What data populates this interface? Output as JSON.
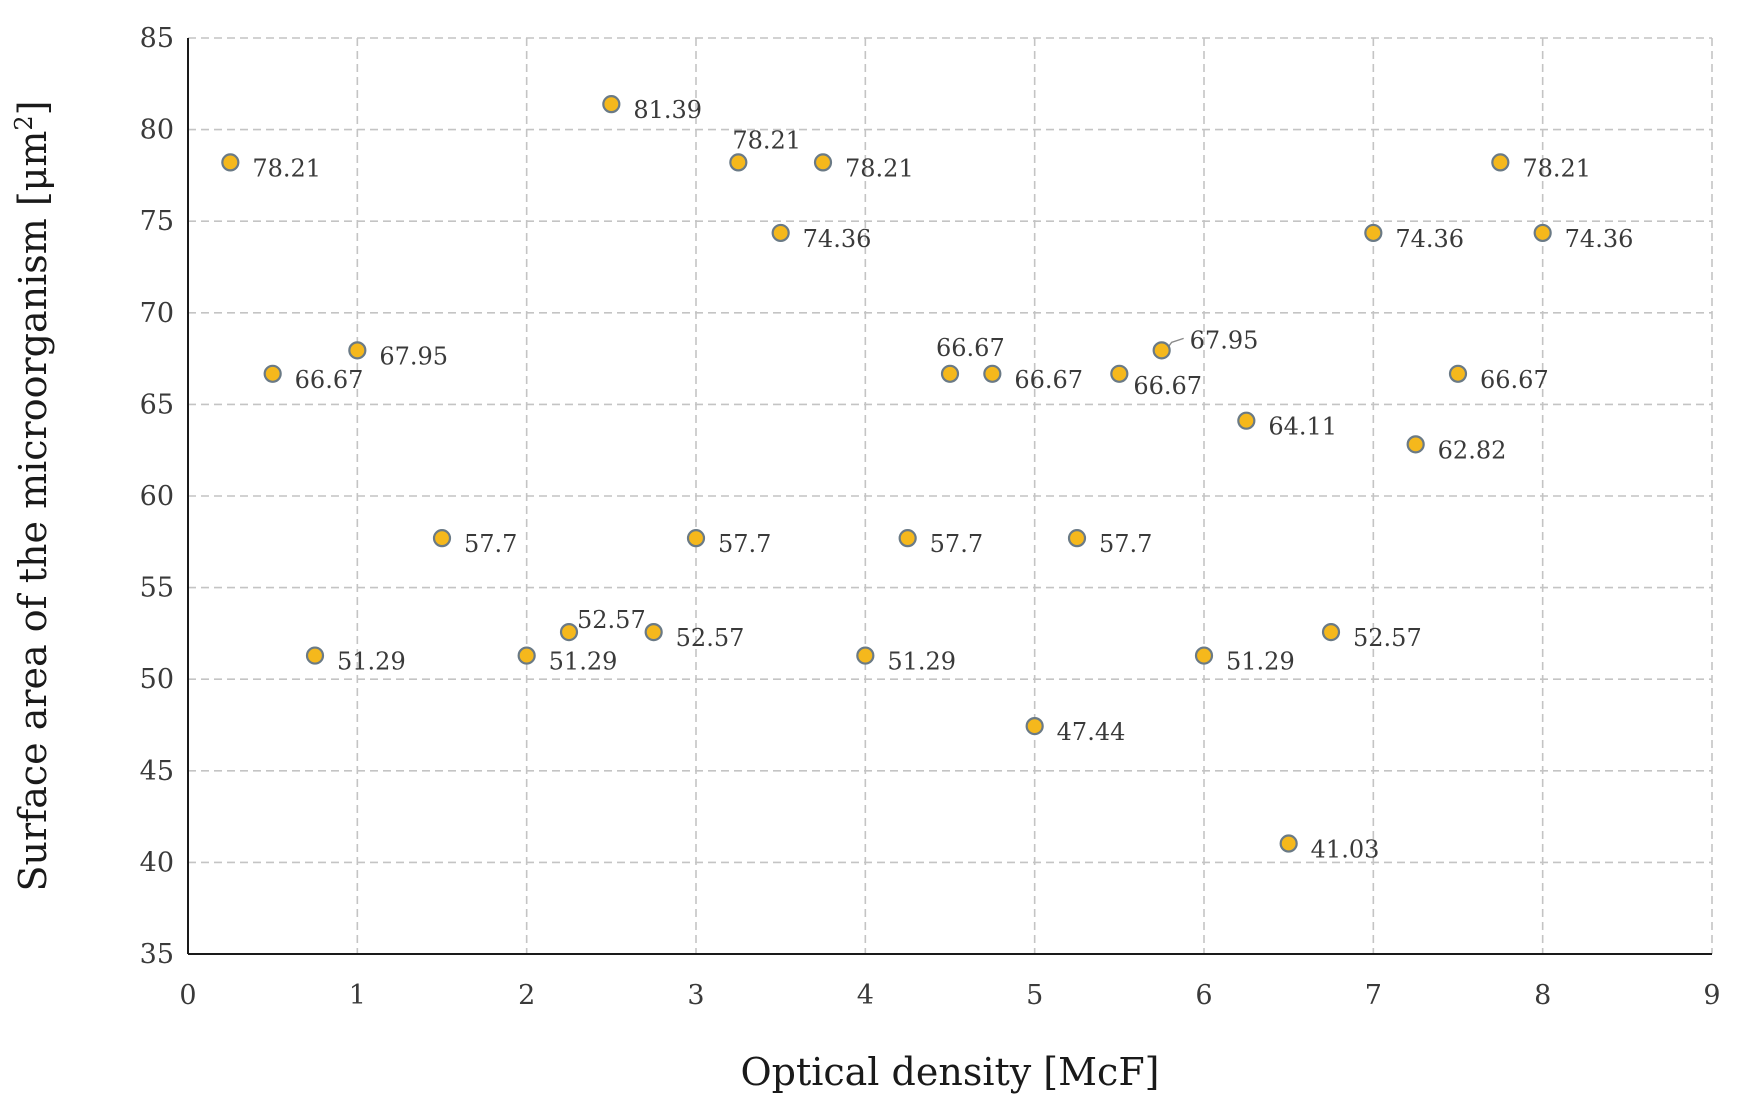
{
  "chart_data": {
    "type": "scatter",
    "title": "",
    "xlabel": "Optical density [McF]",
    "ylabel_main": "Surface area of the microorganism [μm",
    "ylabel_sup": "2",
    "ylabel_tail": "]",
    "xlim": [
      0,
      9
    ],
    "ylim": [
      35,
      85
    ],
    "x_ticks": [
      0,
      1,
      2,
      3,
      4,
      5,
      6,
      7,
      8,
      9
    ],
    "y_ticks": [
      35,
      40,
      45,
      50,
      55,
      60,
      65,
      70,
      75,
      80,
      85
    ],
    "grid": true,
    "legend": "none",
    "colors": {
      "marker_fill": "#F5B81C",
      "marker_edge": "#6A7A86"
    },
    "points": [
      {
        "x": 0.25,
        "y": 78.21,
        "label": "78.21"
      },
      {
        "x": 0.5,
        "y": 66.67,
        "label": "66.67"
      },
      {
        "x": 0.75,
        "y": 51.29,
        "label": "51.29"
      },
      {
        "x": 1.0,
        "y": 67.95,
        "label": "67.95"
      },
      {
        "x": 1.5,
        "y": 57.7,
        "label": "57.7"
      },
      {
        "x": 2.0,
        "y": 51.29,
        "label": "51.29"
      },
      {
        "x": 2.25,
        "y": 52.57,
        "label": "52.57"
      },
      {
        "x": 2.5,
        "y": 81.39,
        "label": "81.39"
      },
      {
        "x": 2.75,
        "y": 52.57,
        "label": "52.57"
      },
      {
        "x": 3.0,
        "y": 57.7,
        "label": "57.7"
      },
      {
        "x": 3.25,
        "y": 78.21,
        "label": "78.21"
      },
      {
        "x": 3.5,
        "y": 74.36,
        "label": "74.36"
      },
      {
        "x": 3.75,
        "y": 78.21,
        "label": "78.21"
      },
      {
        "x": 4.0,
        "y": 51.29,
        "label": "51.29"
      },
      {
        "x": 4.25,
        "y": 57.7,
        "label": "57.7"
      },
      {
        "x": 4.5,
        "y": 66.67,
        "label": "66.67"
      },
      {
        "x": 4.75,
        "y": 66.67,
        "label": "66.67"
      },
      {
        "x": 5.0,
        "y": 47.44,
        "label": "47.44"
      },
      {
        "x": 5.25,
        "y": 57.7,
        "label": "57.7"
      },
      {
        "x": 5.5,
        "y": 66.67,
        "label": "66.67"
      },
      {
        "x": 5.75,
        "y": 67.95,
        "label": "67.95"
      },
      {
        "x": 6.0,
        "y": 51.29,
        "label": "51.29"
      },
      {
        "x": 6.25,
        "y": 64.11,
        "label": "64.11"
      },
      {
        "x": 6.5,
        "y": 41.03,
        "label": "41.03"
      },
      {
        "x": 6.75,
        "y": 52.57,
        "label": "52.57"
      },
      {
        "x": 7.0,
        "y": 74.36,
        "label": "74.36"
      },
      {
        "x": 7.25,
        "y": 62.82,
        "label": "62.82"
      },
      {
        "x": 7.5,
        "y": 66.67,
        "label": "66.67"
      },
      {
        "x": 7.75,
        "y": 78.21,
        "label": "78.21"
      },
      {
        "x": 8.0,
        "y": 74.36,
        "label": "74.36"
      }
    ]
  }
}
